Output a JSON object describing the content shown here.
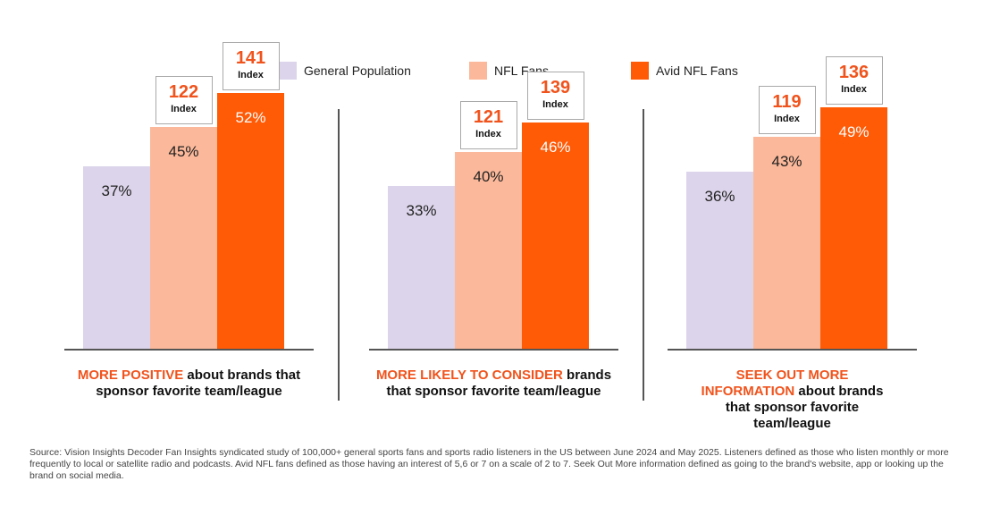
{
  "legend": {
    "items": [
      {
        "label": "General Population",
        "color": "#dcd4ea"
      },
      {
        "label": "NFL Fans",
        "color": "#fbb89a"
      },
      {
        "label": "Avid NFL Fans",
        "color": "#ff5a06"
      }
    ]
  },
  "index_word": "Index",
  "chart_data": [
    {
      "type": "bar",
      "title_highlight": "MORE POSITIVE",
      "title_rest": " about brands that sponsor favorite team/league",
      "categories": [
        "General Population",
        "NFL Fans",
        "Avid NFL Fans"
      ],
      "values": [
        37,
        45,
        52
      ],
      "value_labels": [
        "37%",
        "45%",
        "52%"
      ],
      "index_values": [
        "122",
        "141"
      ],
      "ylim": [
        0,
        60
      ]
    },
    {
      "type": "bar",
      "title_highlight": "MORE LIKELY TO CONSIDER",
      "title_rest": "  brands that sponsor favorite team/league",
      "categories": [
        "General Population",
        "NFL Fans",
        "Avid NFL Fans"
      ],
      "values": [
        33,
        40,
        46
      ],
      "value_labels": [
        "33%",
        "40%",
        "46%"
      ],
      "index_values": [
        "121",
        "139"
      ],
      "ylim": [
        0,
        60
      ]
    },
    {
      "type": "bar",
      "title_highlight": "SEEK OUT MORE INFORMATION",
      "title_rest": " about brands that sponsor favorite team/league",
      "categories": [
        "General Population",
        "NFL Fans",
        "Avid NFL Fans"
      ],
      "values": [
        36,
        43,
        49
      ],
      "value_labels": [
        "36%",
        "43%",
        "49%"
      ],
      "index_values": [
        "119",
        "136"
      ],
      "ylim": [
        0,
        60
      ]
    }
  ],
  "source": "Source: Vision Insights Decoder Fan Insights syndicated study of 100,000+ general sports fans and sports radio listeners in the US between June 2024 and May 2025.  Listeners defined as those who listen monthly or more frequently to local or satellite radio and podcasts.  Avid NFL fans defined as those having an interest of 5,6 or 7 on a scale of 2 to 7.  Seek Out More information defined as going to the brand's website, app or looking up the brand on social media."
}
